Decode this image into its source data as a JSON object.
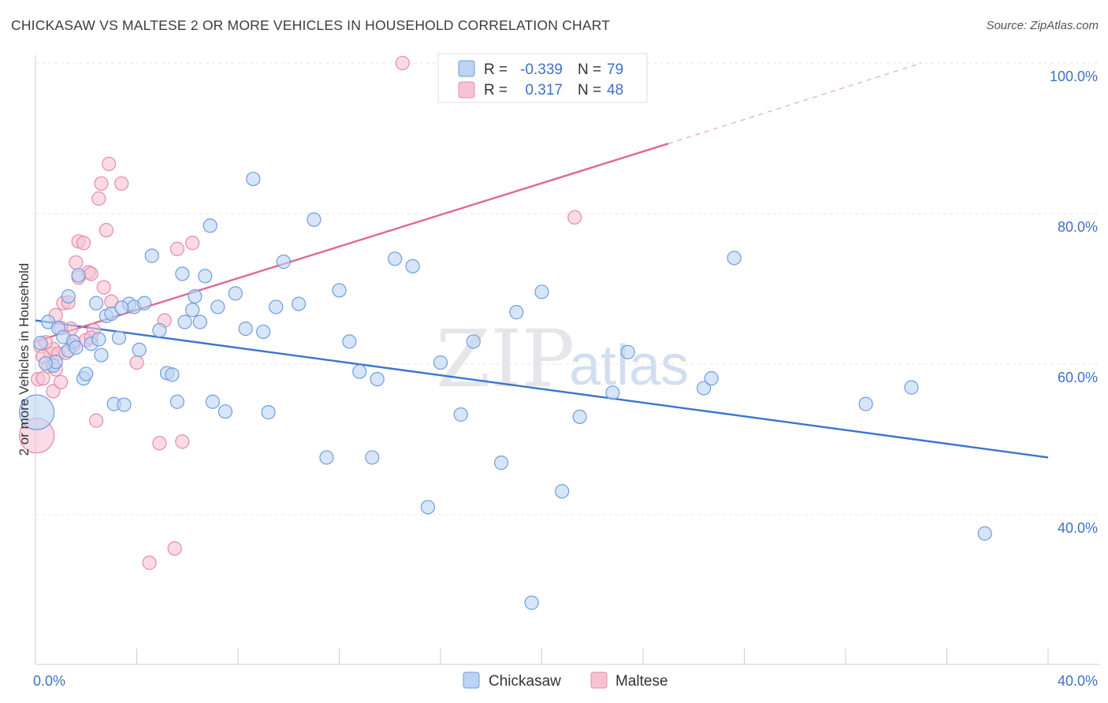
{
  "title": "CHICKASAW VS MALTESE 2 OR MORE VEHICLES IN HOUSEHOLD CORRELATION CHART",
  "source": "Source: ZipAtlas.com",
  "watermark": {
    "zip": "ZIP",
    "atlas": "atlas"
  },
  "colors": {
    "blue": "#6f9de0",
    "blue_fill": "#bcd3f3",
    "pink": "#e88aa8",
    "pink_fill": "#f7c3d3",
    "blue_line": "#3a75d0",
    "pink_line": "#e06890",
    "axis_text": "#3f6fc9"
  },
  "legend": {
    "rows": [
      {
        "r_label": "R =",
        "r_value": "-0.339",
        "n_label": "N =",
        "n_value": "79"
      },
      {
        "r_label": "R =",
        "r_value": "0.317",
        "n_label": "N =",
        "n_value": "48"
      }
    ]
  },
  "bottom_legend": [
    "Chickasaw",
    "Maltese"
  ],
  "chart_data": {
    "type": "scatter",
    "xlabel": "",
    "ylabel": "2 or more Vehicles in Household",
    "xlim": [
      0,
      40
    ],
    "ylim": [
      20,
      102
    ],
    "x_tick_labels": [
      "0.0%",
      "40.0%"
    ],
    "y_tick_labels": [
      "100.0%",
      "80.0%",
      "60.0%",
      "40.0%"
    ],
    "y_ticks": [
      100,
      80,
      60,
      40
    ],
    "series": [
      {
        "name": "Chickasaw",
        "r": -0.339,
        "n": 79,
        "trend": {
          "x": [
            0,
            40
          ],
          "y": [
            65.8,
            47.6
          ]
        },
        "points": [
          [
            0.2,
            62.8
          ],
          [
            0.5,
            65.6
          ],
          [
            0.7,
            59.8
          ],
          [
            0.8,
            60.3
          ],
          [
            0.9,
            64.8
          ],
          [
            1.1,
            63.6
          ],
          [
            1.3,
            61.8
          ],
          [
            1.5,
            63.0
          ],
          [
            1.6,
            62.2
          ],
          [
            1.7,
            71.8
          ],
          [
            1.9,
            58.1
          ],
          [
            2.0,
            58.7
          ],
          [
            2.2,
            62.7
          ],
          [
            2.4,
            68.1
          ],
          [
            2.6,
            61.2
          ],
          [
            2.8,
            66.4
          ],
          [
            3.0,
            66.7
          ],
          [
            3.1,
            54.7
          ],
          [
            3.3,
            63.5
          ],
          [
            3.5,
            54.6
          ],
          [
            3.7,
            68.0
          ],
          [
            3.9,
            67.6
          ],
          [
            4.1,
            61.9
          ],
          [
            4.3,
            68.1
          ],
          [
            4.6,
            74.4
          ],
          [
            4.9,
            64.5
          ],
          [
            5.2,
            58.8
          ],
          [
            5.4,
            58.6
          ],
          [
            5.6,
            55.0
          ],
          [
            5.9,
            65.6
          ],
          [
            6.2,
            67.2
          ],
          [
            6.3,
            69.0
          ],
          [
            6.5,
            65.6
          ],
          [
            6.7,
            71.7
          ],
          [
            7.0,
            55.0
          ],
          [
            7.2,
            67.6
          ],
          [
            7.5,
            53.7
          ],
          [
            7.9,
            69.4
          ],
          [
            8.3,
            64.7
          ],
          [
            8.6,
            84.6
          ],
          [
            9.0,
            64.3
          ],
          [
            9.2,
            53.6
          ],
          [
            9.5,
            67.6
          ],
          [
            9.8,
            73.6
          ],
          [
            10.4,
            68.0
          ],
          [
            11.0,
            79.2
          ],
          [
            11.5,
            47.6
          ],
          [
            12.0,
            69.8
          ],
          [
            12.4,
            63.0
          ],
          [
            12.8,
            59.0
          ],
          [
            13.3,
            47.6
          ],
          [
            13.5,
            58.0
          ],
          [
            14.2,
            74.0
          ],
          [
            14.9,
            73.0
          ],
          [
            15.5,
            41.0
          ],
          [
            16.0,
            60.2
          ],
          [
            16.8,
            53.3
          ],
          [
            17.3,
            63.0
          ],
          [
            18.4,
            46.9
          ],
          [
            19.0,
            66.9
          ],
          [
            19.6,
            28.3
          ],
          [
            20.0,
            69.6
          ],
          [
            20.8,
            43.1
          ],
          [
            21.5,
            53.0
          ],
          [
            22.8,
            56.2
          ],
          [
            23.4,
            61.6
          ],
          [
            26.4,
            56.8
          ],
          [
            26.7,
            58.1
          ],
          [
            27.6,
            74.1
          ],
          [
            32.8,
            54.7
          ],
          [
            34.6,
            56.9
          ],
          [
            37.5,
            37.5
          ],
          [
            0.05,
            53.6
          ],
          [
            1.3,
            69.0
          ],
          [
            6.9,
            78.4
          ],
          [
            0.4,
            60.1
          ],
          [
            2.5,
            63.3
          ],
          [
            3.4,
            67.5
          ],
          [
            5.8,
            72.0
          ]
        ],
        "sizes": {
          "0.05,53.6": "large"
        }
      },
      {
        "name": "Maltese",
        "r": 0.317,
        "n": 48,
        "trend": {
          "x": [
            0,
            25
          ],
          "y": [
            63.0,
            89.3
          ]
        },
        "trend_dashed": {
          "x": [
            25,
            35
          ],
          "y": [
            89.3,
            100.0
          ]
        },
        "points": [
          [
            0.05,
            50.5
          ],
          [
            0.1,
            58.0
          ],
          [
            0.2,
            62.4
          ],
          [
            0.3,
            58.1
          ],
          [
            0.5,
            59.7
          ],
          [
            0.6,
            61.4
          ],
          [
            0.7,
            62.0
          ],
          [
            0.7,
            56.4
          ],
          [
            0.8,
            66.5
          ],
          [
            0.9,
            61.4
          ],
          [
            1.0,
            57.6
          ],
          [
            1.1,
            68.1
          ],
          [
            1.2,
            61.5
          ],
          [
            1.3,
            68.2
          ],
          [
            1.4,
            64.7
          ],
          [
            1.5,
            63.0
          ],
          [
            1.6,
            73.5
          ],
          [
            1.7,
            71.5
          ],
          [
            1.7,
            76.3
          ],
          [
            1.9,
            76.1
          ],
          [
            2.0,
            63.2
          ],
          [
            2.1,
            72.2
          ],
          [
            2.2,
            72.0
          ],
          [
            2.3,
            64.5
          ],
          [
            2.4,
            52.5
          ],
          [
            2.5,
            82.0
          ],
          [
            2.6,
            84.0
          ],
          [
            2.7,
            70.2
          ],
          [
            2.8,
            77.8
          ],
          [
            2.9,
            86.6
          ],
          [
            3.0,
            68.3
          ],
          [
            3.4,
            84.0
          ],
          [
            4.0,
            60.2
          ],
          [
            4.5,
            33.6
          ],
          [
            4.9,
            49.5
          ],
          [
            5.1,
            65.8
          ],
          [
            5.5,
            35.5
          ],
          [
            5.6,
            75.3
          ],
          [
            5.8,
            49.7
          ],
          [
            6.2,
            76.1
          ],
          [
            14.5,
            100.0
          ],
          [
            21.3,
            79.5
          ],
          [
            0.4,
            62.9
          ],
          [
            0.8,
            59.3
          ],
          [
            1.5,
            62.5
          ],
          [
            2.2,
            63.5
          ],
          [
            0.3,
            61.0
          ],
          [
            1.0,
            64.8
          ]
        ],
        "sizes": {
          "0.05,50.5": "large"
        }
      }
    ]
  }
}
